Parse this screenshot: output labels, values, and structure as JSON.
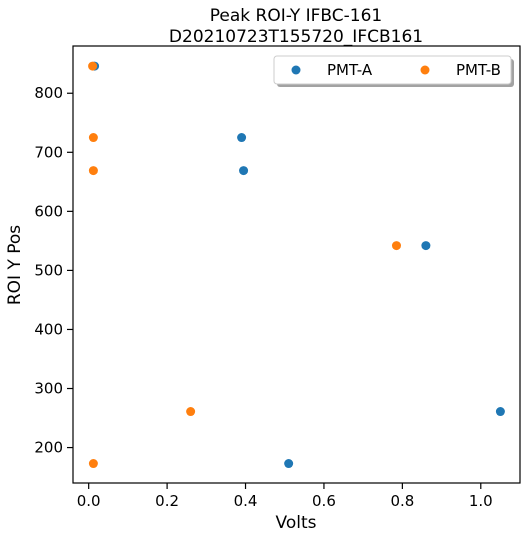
{
  "chart_data": {
    "type": "scatter",
    "title": "Peak ROI-Y IFBC-161",
    "subtitle": "D20210723T155720_IFCB161",
    "xlabel": "Volts",
    "ylabel": "ROI Y Pos",
    "xlim": [
      -0.04,
      1.1
    ],
    "ylim": [
      140,
      880
    ],
    "xticks": [
      0.0,
      0.2,
      0.4,
      0.6,
      0.8,
      1.0
    ],
    "xtick_labels": [
      "0.0",
      "0.2",
      "0.4",
      "0.6",
      "0.8",
      "1.0"
    ],
    "yticks": [
      200,
      300,
      400,
      500,
      600,
      700,
      800
    ],
    "ytick_labels": [
      "200",
      "300",
      "400",
      "500",
      "600",
      "700",
      "800"
    ],
    "grid": false,
    "legend_position": "top-right",
    "series": [
      {
        "name": "PMT-A",
        "color": "#1f77b4",
        "points": [
          {
            "x": 0.015,
            "y": 846
          },
          {
            "x": 0.39,
            "y": 725
          },
          {
            "x": 0.395,
            "y": 669
          },
          {
            "x": 0.86,
            "y": 542
          },
          {
            "x": 1.05,
            "y": 261
          },
          {
            "x": 0.51,
            "y": 173
          }
        ]
      },
      {
        "name": "PMT-B",
        "color": "#ff7f0e",
        "points": [
          {
            "x": 0.01,
            "y": 846
          },
          {
            "x": 0.012,
            "y": 725
          },
          {
            "x": 0.012,
            "y": 669
          },
          {
            "x": 0.785,
            "y": 542
          },
          {
            "x": 0.26,
            "y": 261
          },
          {
            "x": 0.012,
            "y": 173
          }
        ]
      }
    ]
  }
}
